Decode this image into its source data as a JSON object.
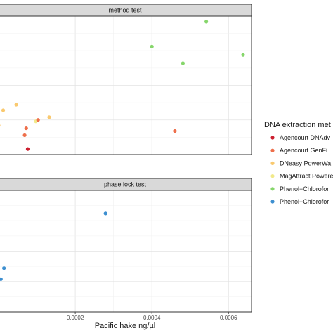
{
  "chart_data": {
    "type": "scatter",
    "xlabel": "Pacific hake ng/µl",
    "x_ticks": [
      "0.0002",
      "0.0004",
      "0.0006"
    ],
    "x_tick_values": [
      0.0002,
      0.0004,
      0.0006
    ],
    "xlim": [
      0.0,
      0.00066
    ],
    "grid": true,
    "legend_position": "right",
    "legend": {
      "title": "DNA extraction met",
      "entries": [
        {
          "label": "Agencourt DNAdv",
          "color": "#cc1f2f"
        },
        {
          "label": "Agencourt GenFi",
          "color": "#ee6f4b"
        },
        {
          "label": "DNeasy PowerWa",
          "color": "#f9c96f"
        },
        {
          "label": "MagAttract Powere",
          "color": "#f1e98a"
        },
        {
          "label": "Phenol−Chlorofor",
          "color": "#86d66b"
        },
        {
          "label": "Phenol−Chlorofor",
          "color": "#3d8fd0"
        }
      ]
    },
    "panels": [
      {
        "strip": "method test",
        "ylim": [
          0,
          10
        ],
        "points": [
          {
            "x": 0.000542,
            "y": 9.6,
            "series": 4
          },
          {
            "x": 0.0004,
            "y": 7.8,
            "series": 4
          },
          {
            "x": 0.000638,
            "y": 7.2,
            "series": 4
          },
          {
            "x": 0.000481,
            "y": 6.6,
            "series": 4
          },
          {
            "x": 4.6e-05,
            "y": 3.6,
            "series": 2
          },
          {
            "x": 1.2e-05,
            "y": 3.2,
            "series": 2
          },
          {
            "x": 0.000132,
            "y": 2.7,
            "series": 2
          },
          {
            "x": 9.7e-05,
            "y": 2.4,
            "series": 3
          },
          {
            "x": 0.0,
            "y": 2.1,
            "series": 2
          },
          {
            "x": 0.000103,
            "y": 2.5,
            "series": 1
          },
          {
            "x": 0.00046,
            "y": 1.7,
            "series": 1
          },
          {
            "x": 7.2e-05,
            "y": 1.9,
            "series": 1
          },
          {
            "x": 6.8e-05,
            "y": 1.4,
            "series": 1
          },
          {
            "x": 7.6e-05,
            "y": 0.4,
            "series": 0
          }
        ]
      },
      {
        "strip": "phase lock test",
        "ylim": [
          0,
          10
        ],
        "points": [
          {
            "x": 0.000279,
            "y": 8.1,
            "series": 5
          },
          {
            "x": 1.4e-05,
            "y": 3.6,
            "series": 5
          },
          {
            "x": 6e-06,
            "y": 2.7,
            "series": 5
          }
        ]
      }
    ]
  }
}
